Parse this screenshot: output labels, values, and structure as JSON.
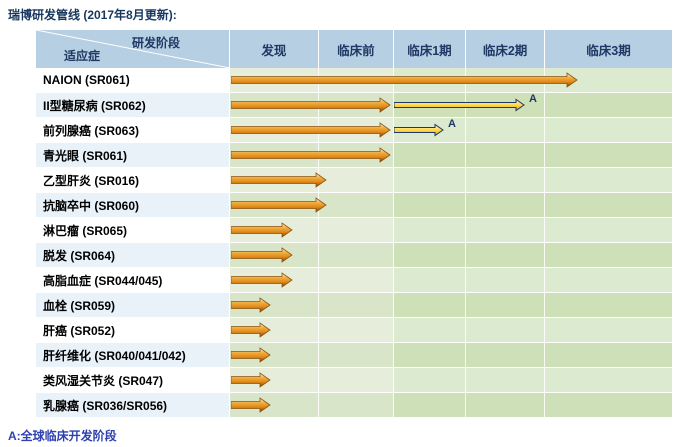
{
  "title": "瑞博研发管线 (2017年8月更新):",
  "footnote": "A:全球临床开发阶段",
  "header": {
    "corner_top": "研发阶段",
    "corner_bottom": "适应症"
  },
  "chart_data": {
    "type": "bar",
    "subtype": "pipeline-gantt",
    "title": "瑞博研发管线 (2017年8月更新)",
    "xlabel": "研发阶段",
    "ylabel": "适应症",
    "stage_columns": [
      "发现",
      "临床前",
      "临床1期",
      "临床2期",
      "临床3期"
    ],
    "progress_unit": "stages (1 unit = one stage column, max 5)",
    "legend": {
      "A": "全球临床开发阶段"
    },
    "rows": [
      {
        "indication": "NAION (SR061)",
        "progress": 4.25
      },
      {
        "indication": "II型糖尿病 (SR062)",
        "progress": 1.95,
        "global_arrow": {
          "start": 2.0,
          "end": 3.75,
          "label": "A"
        }
      },
      {
        "indication": "前列腺癌 (SR063)",
        "progress": 1.95,
        "global_arrow": {
          "start": 2.0,
          "end": 2.7,
          "label": "A"
        }
      },
      {
        "indication": "青光眼 (SR061)",
        "progress": 1.95
      },
      {
        "indication": "乙型肝炎 (SR016)",
        "progress": 1.1
      },
      {
        "indication": "抗脑卒中 (SR060)",
        "progress": 1.1
      },
      {
        "indication": "淋巴瘤 (SR065)",
        "progress": 0.7
      },
      {
        "indication": "脱发 (SR064)",
        "progress": 0.7
      },
      {
        "indication": "高脂血症 (SR044/045)",
        "progress": 0.7
      },
      {
        "indication": "血栓 (SR059)",
        "progress": 0.45
      },
      {
        "indication": "肝癌 (SR052)",
        "progress": 0.45
      },
      {
        "indication": "肝纤维化 (SR040/041/042)",
        "progress": 0.45
      },
      {
        "indication": "类风湿关节炎 (SR047)",
        "progress": 0.45
      },
      {
        "indication": "乳腺癌 (SR036/SR056)",
        "progress": 0.45
      }
    ]
  },
  "colors": {
    "title_color": "#17375e",
    "footnote_color": "#2e41b0",
    "header_bg": "#b7cfe3",
    "header_text": "#1f3864",
    "grid_line": "#ffffff",
    "label_even_bg": "#ffffff",
    "label_odd_bg": "#e9f1f9",
    "green1_even": "#e6eedb",
    "green1_odd": "#d9e5c9",
    "green2_even": "#dcead0",
    "green2_odd": "#cde0b7",
    "arrow_light": "#fdf2d8",
    "arrow_mid": "#f0ab3c",
    "arrow_mid2": "#df8818",
    "arrow_dark": "#7a3e06",
    "arrow_outline": "#8a5410",
    "global_light": "#fff8cf",
    "global_mid": "#ffd84a",
    "global_dark": "#e3a81e",
    "global_outline": "#1f3864"
  }
}
